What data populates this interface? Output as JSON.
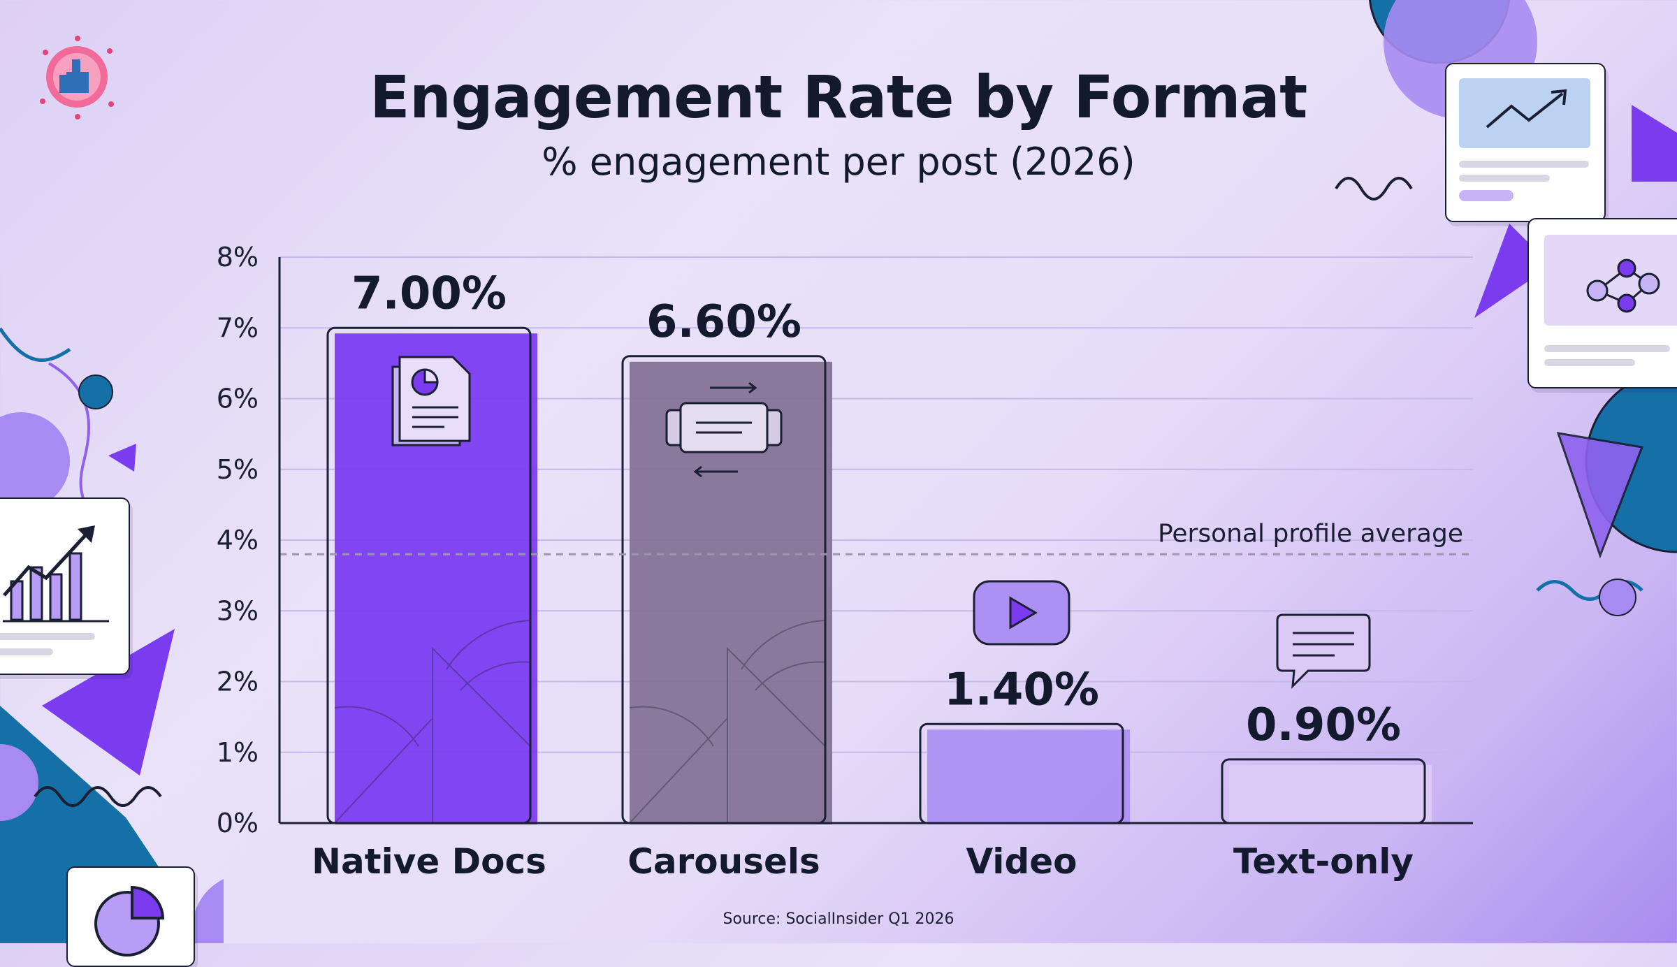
{
  "title": "Engagement Rate by Format",
  "subtitle": "% engagement per post (2026)",
  "source": "Source: SocialInsider Q1 2026",
  "colors": {
    "native_docs": "#7b3cf0",
    "carousels": "#857397",
    "video": "#ad90f3",
    "text_only": "#dccaf6",
    "axis": "#1b1f33",
    "accent_blue": "#1670a8"
  },
  "chart_data": {
    "type": "bar",
    "title": "Engagement Rate by Format",
    "subtitle": "% engagement per post (2026)",
    "xlabel": "",
    "ylabel": "",
    "categories": [
      "Native Docs",
      "Carousels",
      "Video",
      "Text-only"
    ],
    "values": [
      7.0,
      6.6,
      1.4,
      0.9
    ],
    "value_labels": [
      "7.00%",
      "6.60%",
      "1.40%",
      "0.90%"
    ],
    "icons": [
      "document-chart-icon",
      "carousel-slides-icon",
      "video-play-icon",
      "chat-bubble-icon"
    ],
    "ylim": [
      0,
      8
    ],
    "y_ticks": [
      0,
      1,
      2,
      3,
      4,
      5,
      6,
      7,
      8
    ],
    "y_tick_labels": [
      "0%",
      "1%",
      "2%",
      "3%",
      "4%",
      "5%",
      "6%",
      "7%",
      "8%"
    ],
    "grid": true,
    "reference_line": {
      "value": 3.8,
      "label": "Personal profile average",
      "style": "dashed"
    }
  }
}
